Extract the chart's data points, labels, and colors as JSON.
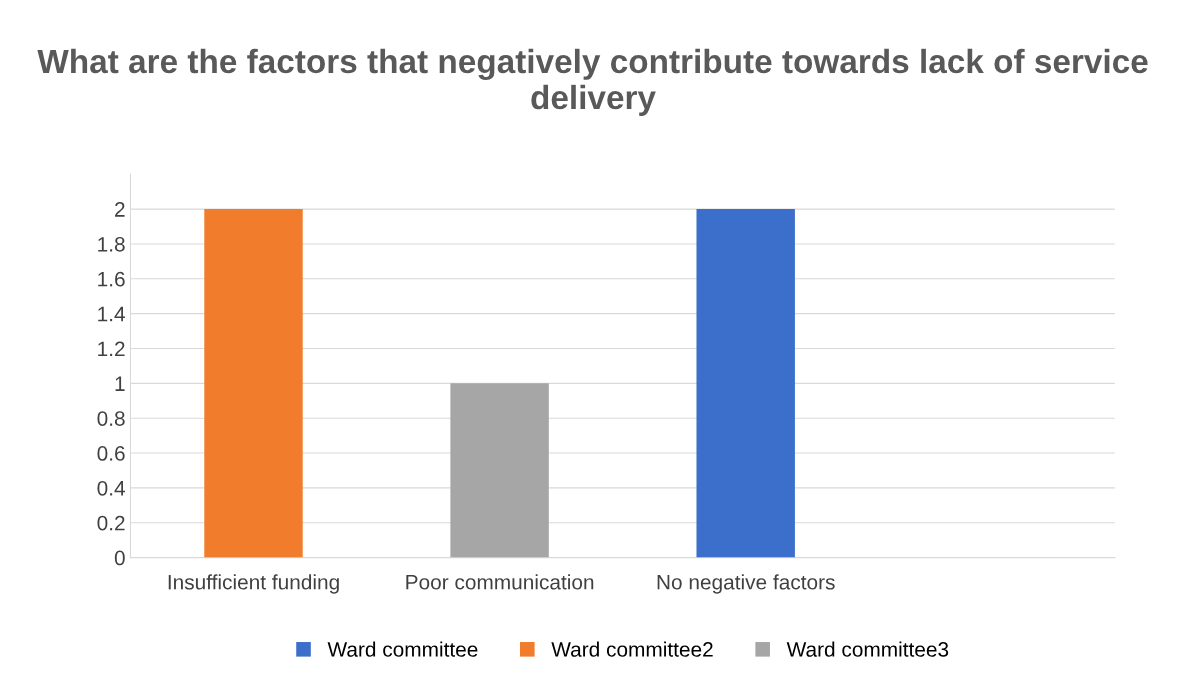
{
  "chart_data": {
    "type": "bar",
    "title": "What are the factors that negatively contribute towards lack of service delivery",
    "categories": [
      "Insufficient funding",
      "Poor communication",
      "No negative factors",
      null
    ],
    "series": [
      {
        "name": "Ward committee",
        "color": "#3c6fcb",
        "values": [
          null,
          null,
          2,
          null
        ]
      },
      {
        "name": "Ward committee2",
        "color": "#f07c2c",
        "values": [
          2,
          null,
          null,
          null
        ]
      },
      {
        "name": "Ward committee3",
        "color": "#a6a6a6",
        "values": [
          null,
          1,
          null,
          null
        ]
      }
    ],
    "ylim": [
      0,
      2.2
    ],
    "yticks": [
      0,
      0.2,
      0.4,
      0.6,
      0.8,
      1,
      1.2,
      1.4,
      1.6,
      1.8,
      2
    ],
    "grid": "y",
    "legend": "bottom"
  }
}
